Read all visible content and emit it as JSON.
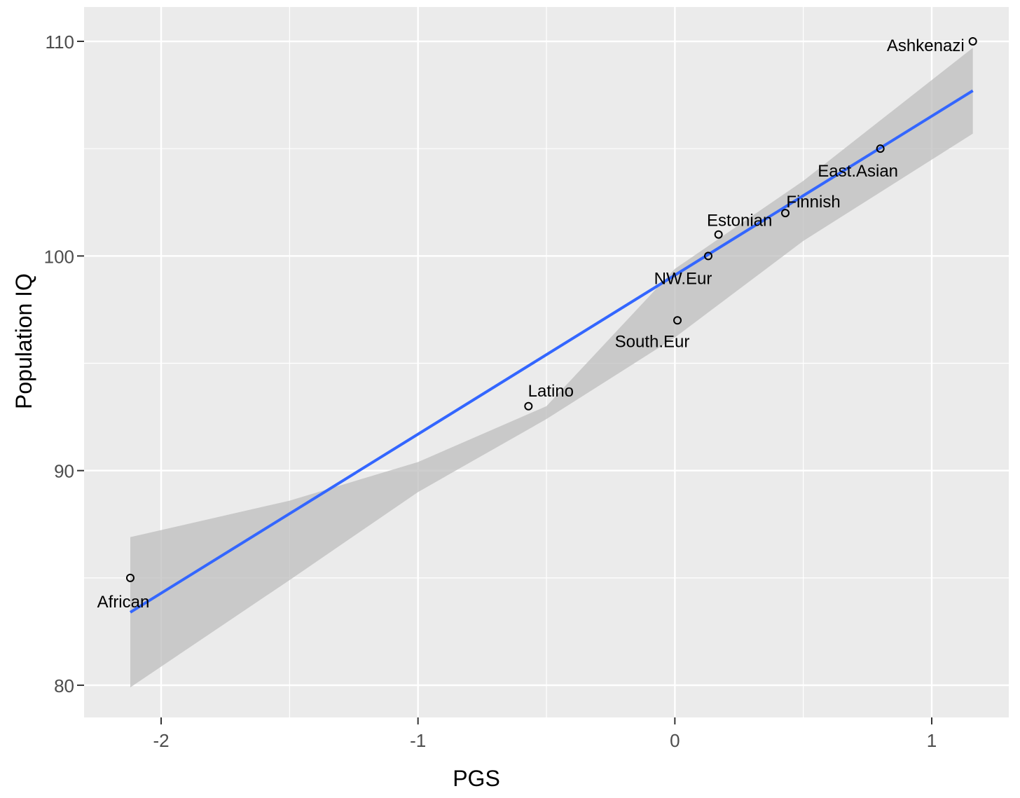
{
  "chart_data": {
    "type": "scatter",
    "xlabel": "PGS",
    "ylabel": "Population IQ",
    "xlim": [
      -2.3,
      1.3
    ],
    "ylim": [
      78.5,
      111.6
    ],
    "x_ticks": [
      -2,
      -1,
      0,
      1
    ],
    "x_tick_labels": [
      "-2",
      "-1",
      "0",
      "1"
    ],
    "y_ticks": [
      80,
      90,
      100,
      110
    ],
    "y_tick_labels": [
      "80",
      "90",
      "100",
      "110"
    ],
    "grid": true,
    "points": [
      {
        "label": "Ashkenazi",
        "x": 1.16,
        "y": 110
      },
      {
        "label": "East.Asian",
        "x": 0.8,
        "y": 105
      },
      {
        "label": "Finnish",
        "x": 0.43,
        "y": 102
      },
      {
        "label": "Estonian",
        "x": 0.17,
        "y": 101
      },
      {
        "label": "NW.Eur",
        "x": 0.13,
        "y": 100
      },
      {
        "label": "South.Eur",
        "x": 0.01,
        "y": 97
      },
      {
        "label": "Latino",
        "x": -0.57,
        "y": 93
      },
      {
        "label": "African",
        "x": -2.12,
        "y": 85
      }
    ],
    "fit_line": {
      "x": [
        -2.12,
        1.16
      ],
      "y": [
        83.4,
        107.7
      ],
      "ci_upper": [
        86.9,
        109.7
      ],
      "ci_lower": [
        79.9,
        105.7
      ],
      "ci_x": [
        -2.12,
        -1.5,
        -1.0,
        -0.5,
        0.0,
        0.5,
        1.16
      ],
      "ci_hi": [
        86.9,
        88.6,
        90.4,
        93.0,
        99.4,
        103.5,
        109.7
      ],
      "ci_lo": [
        79.9,
        84.9,
        89.0,
        92.4,
        96.2,
        100.7,
        105.7
      ]
    },
    "colors": {
      "panel_bg": "#ebebeb",
      "grid": "#ffffff",
      "line": "#3366ff",
      "ribbon": "#bebebe",
      "point": "#000000"
    }
  }
}
